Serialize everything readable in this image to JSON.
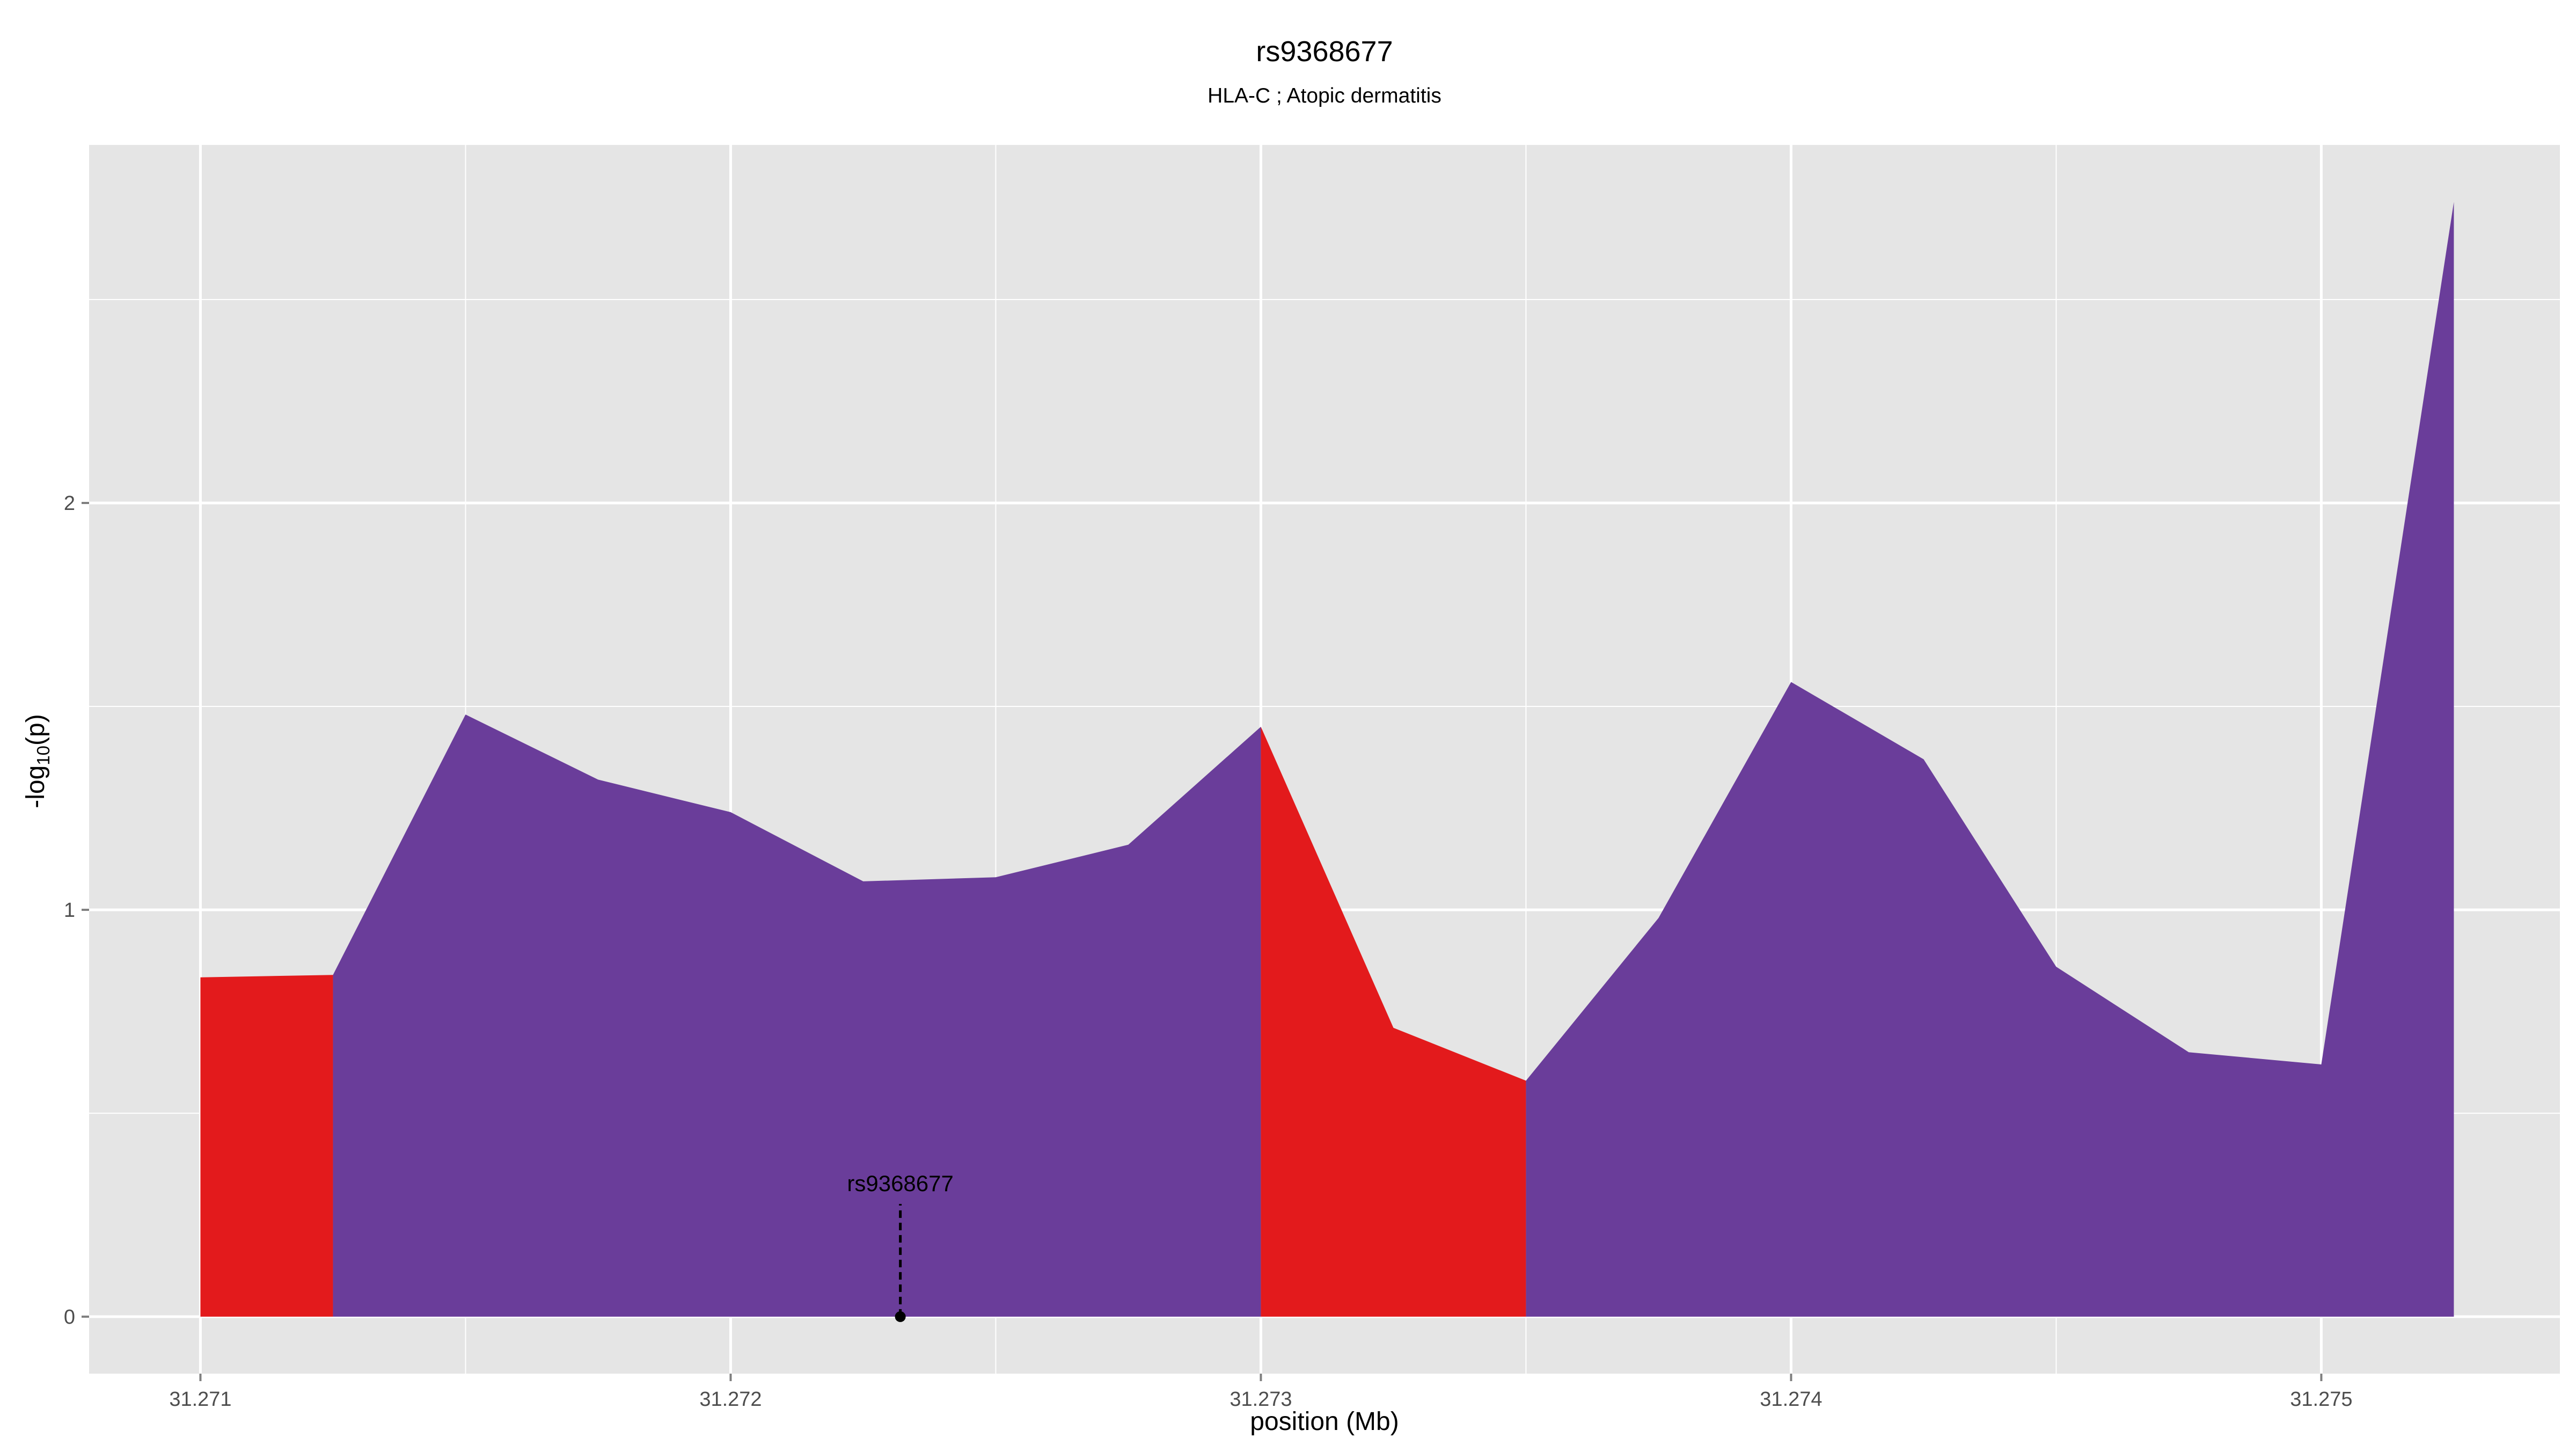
{
  "chart_data": {
    "type": "area",
    "title": "rs9368677",
    "subtitle": "HLA-C ; Atopic dermatitis",
    "xlabel": "position (Mb)",
    "ylabel_main": "-log",
    "ylabel_sub": "10",
    "ylabel_tail": "(p)",
    "xlim": [
      31.27079,
      31.27545
    ],
    "ylim": [
      -0.14,
      2.88
    ],
    "x_ticks": [
      31.271,
      31.272,
      31.273,
      31.274,
      31.275
    ],
    "x_tick_labels": [
      "31.271",
      "31.272",
      "31.273",
      "31.274",
      "31.275"
    ],
    "x_minor_ticks": [
      31.2715,
      31.2725,
      31.2735,
      31.2745
    ],
    "y_ticks": [
      0,
      1,
      2
    ],
    "y_tick_labels": [
      "0",
      "1",
      "2"
    ],
    "y_minor_ticks": [
      0.5,
      1.5,
      2.5
    ],
    "grid": true,
    "colors": {
      "red": "#E31A1C",
      "purple": "#6A3D9A",
      "panel": "#E5E5E5",
      "grid": "#FFFFFF"
    },
    "segments": [
      {
        "color": "red",
        "points": [
          [
            31.271,
            0.834
          ],
          [
            31.27125,
            0.84
          ]
        ]
      },
      {
        "color": "purple",
        "points": [
          [
            31.27125,
            0.84
          ],
          [
            31.2715,
            1.48
          ],
          [
            31.27175,
            1.32
          ],
          [
            31.272,
            1.24
          ],
          [
            31.27225,
            1.07
          ],
          [
            31.2725,
            1.08
          ],
          [
            31.27275,
            1.16
          ],
          [
            31.273,
            1.45
          ]
        ]
      },
      {
        "color": "red",
        "points": [
          [
            31.273,
            1.45
          ],
          [
            31.27325,
            0.71
          ],
          [
            31.2735,
            0.58
          ]
        ]
      },
      {
        "color": "purple",
        "points": [
          [
            31.2735,
            0.58
          ],
          [
            31.27375,
            0.98
          ],
          [
            31.274,
            1.56
          ],
          [
            31.27425,
            1.37
          ],
          [
            31.2745,
            0.86
          ],
          [
            31.27475,
            0.65
          ],
          [
            31.275,
            0.62
          ],
          [
            31.27525,
            2.74
          ]
        ]
      }
    ],
    "annotation": {
      "label": "rs9368677",
      "x": 31.27232,
      "y": 0
    }
  }
}
